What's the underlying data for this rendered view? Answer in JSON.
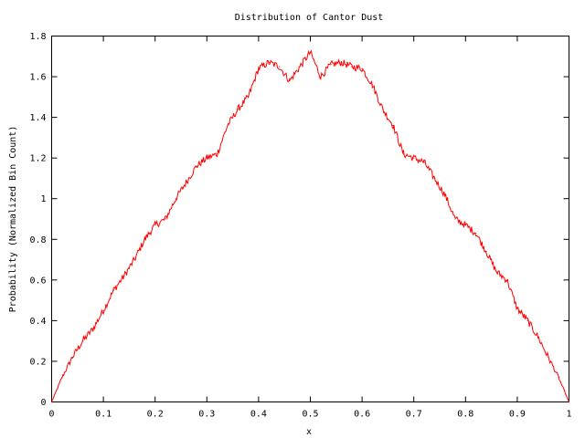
{
  "chart_data": {
    "type": "line",
    "title": "Distribution of Cantor Dust",
    "xlabel": "x",
    "ylabel": "Probability (Normalized Bin Count)",
    "xlim": [
      0,
      1
    ],
    "ylim": [
      0,
      1.8
    ],
    "x_ticks": [
      "0",
      "0.1",
      "0.2",
      "0.3",
      "0.4",
      "0.5",
      "0.6",
      "0.7",
      "0.8",
      "0.9",
      "1"
    ],
    "y_ticks": [
      "0",
      "0.2",
      "0.4",
      "0.6",
      "0.8",
      "1",
      "1.2",
      "1.4",
      "1.6",
      "1.8"
    ],
    "grid": false,
    "legend": "none",
    "series": [
      {
        "color": "#ff0000",
        "x": [
          0,
          0.02,
          0.04,
          0.06,
          0.08,
          0.1,
          0.12,
          0.14,
          0.16,
          0.18,
          0.2,
          0.22,
          0.24,
          0.26,
          0.28,
          0.3,
          0.32,
          0.34,
          0.36,
          0.38,
          0.4,
          0.42,
          0.44,
          0.46,
          0.48,
          0.5,
          0.52,
          0.54,
          0.56,
          0.58,
          0.6,
          0.62,
          0.64,
          0.66,
          0.68,
          0.7,
          0.72,
          0.74,
          0.76,
          0.78,
          0.8,
          0.82,
          0.84,
          0.86,
          0.88,
          0.9,
          0.92,
          0.94,
          0.96,
          0.98,
          1.0
        ],
        "y": [
          0.0,
          0.12,
          0.22,
          0.3,
          0.36,
          0.45,
          0.55,
          0.62,
          0.7,
          0.8,
          0.87,
          0.9,
          1.0,
          1.08,
          1.16,
          1.2,
          1.22,
          1.36,
          1.44,
          1.5,
          1.64,
          1.67,
          1.65,
          1.58,
          1.65,
          1.72,
          1.6,
          1.66,
          1.67,
          1.65,
          1.64,
          1.56,
          1.44,
          1.36,
          1.22,
          1.2,
          1.18,
          1.1,
          1.02,
          0.9,
          0.87,
          0.83,
          0.74,
          0.64,
          0.6,
          0.46,
          0.4,
          0.32,
          0.22,
          0.12,
          0.0
        ]
      }
    ]
  }
}
